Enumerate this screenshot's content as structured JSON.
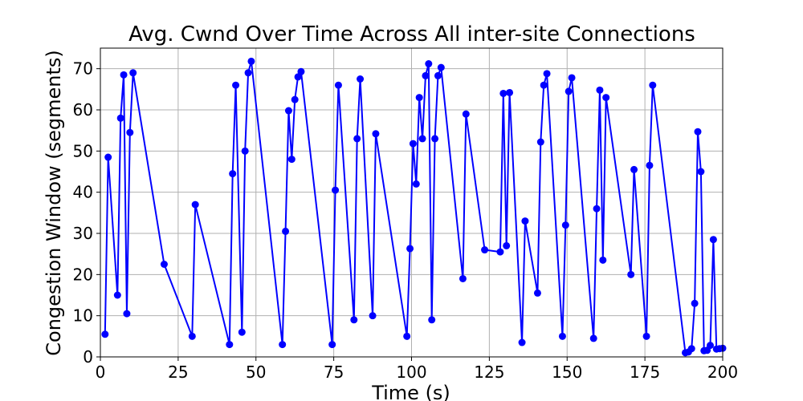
{
  "chart_data": {
    "type": "line",
    "title": "Avg. Cwnd Over Time Across All inter-site Connections",
    "xlabel": "Time (s)",
    "ylabel": "Congestion Window (segments)",
    "xlim": [
      0,
      200
    ],
    "ylim": [
      0,
      75
    ],
    "xticks": [
      0,
      25,
      50,
      75,
      100,
      125,
      150,
      175,
      200
    ],
    "yticks": [
      0,
      10,
      20,
      30,
      40,
      50,
      60,
      70
    ],
    "grid": true,
    "legend": "none",
    "series": [
      {
        "color": "#0000ff",
        "marker": "circle",
        "x": [
          1.5,
          2.5,
          5.5,
          6.5,
          7.5,
          8.5,
          9.5,
          10.5,
          20.5,
          29.5,
          30.5,
          41.5,
          42.5,
          43.5,
          45.5,
          46.5,
          47.5,
          48.5,
          58.5,
          59.5,
          60.5,
          61.5,
          62.5,
          63.5,
          64.5,
          74.5,
          75.5,
          76.5,
          81.5,
          82.5,
          83.5,
          87.5,
          88.5,
          98.5,
          99.5,
          100.5,
          101.5,
          102.5,
          103.5,
          104.5,
          105.5,
          106.5,
          107.5,
          108.5,
          109.5,
          116.5,
          117.5,
          123.5,
          128.5,
          129.5,
          130.5,
          131.5,
          135.5,
          136.5,
          140.5,
          141.5,
          142.5,
          143.5,
          148.5,
          149.5,
          150.5,
          151.5,
          158.5,
          159.5,
          160.5,
          161.5,
          162.5,
          170.5,
          171.5,
          175.5,
          176.5,
          177.5,
          188.0,
          189.0,
          190.0,
          191.0,
          192.0,
          193.0,
          194.0,
          195.0,
          196.0,
          197.0,
          198.0,
          199.0,
          200.0
        ],
        "y": [
          5.5,
          48.5,
          15.0,
          58.0,
          68.5,
          10.5,
          54.5,
          69.0,
          22.5,
          5.0,
          37.0,
          3.0,
          44.5,
          66.0,
          6.0,
          50.0,
          69.0,
          71.8,
          3.0,
          30.5,
          59.8,
          48.0,
          62.5,
          68.0,
          69.3,
          3.0,
          40.5,
          66.0,
          9.0,
          53.0,
          67.5,
          10.0,
          54.2,
          5.0,
          26.3,
          51.8,
          42.0,
          63.0,
          53.0,
          68.3,
          71.2,
          9.0,
          53.0,
          68.3,
          70.3,
          19.0,
          59.0,
          26.0,
          25.5,
          64.0,
          27.0,
          64.2,
          3.5,
          33.0,
          15.5,
          52.2,
          66.0,
          68.8,
          5.0,
          32.0,
          64.5,
          67.8,
          4.5,
          36.0,
          64.8,
          23.5,
          63.0,
          20.0,
          45.5,
          5.0,
          46.5,
          66.0,
          1.0,
          1.2,
          2.0,
          13.0,
          54.7,
          45.0,
          1.5,
          1.6,
          2.8,
          28.5,
          1.9,
          2.0,
          2.1
        ]
      }
    ]
  }
}
